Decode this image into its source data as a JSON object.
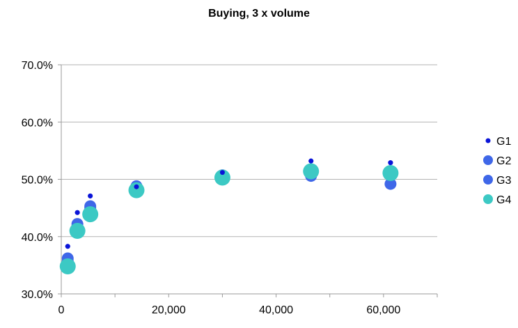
{
  "chart_data": {
    "type": "scatter",
    "title": "Buying, 3 x volume",
    "xlabel": "",
    "ylabel": "",
    "xlim": [
      0,
      70000
    ],
    "ylim": [
      0.3,
      0.7
    ],
    "x_ticks": [
      20000,
      40000,
      60000
    ],
    "x_tick_labels": [
      "20,000",
      "40,000",
      "60,000"
    ],
    "y_ticks": [
      0.3,
      0.4,
      0.5,
      0.6,
      0.7
    ],
    "y_tick_labels": [
      "30.0%",
      "40.0%",
      "50.0%",
      "60.0%",
      "70.0%"
    ],
    "grid": "horizontal",
    "legend_position": "right",
    "series": [
      {
        "name": "G1",
        "color": "#0a14d8",
        "marker": "small-circle",
        "x": [
          1200,
          3000,
          5400,
          14000,
          30000,
          46500,
          61300
        ],
        "y": [
          0.383,
          0.442,
          0.471,
          0.487,
          0.512,
          0.532,
          0.529
        ]
      },
      {
        "name": "G2",
        "color": "#3f67e8",
        "marker": "circle",
        "x": [
          1200,
          3000,
          5400,
          14000,
          30000,
          46500,
          61300
        ],
        "y": [
          0.362,
          0.422,
          0.453,
          0.488,
          0.502,
          0.506,
          0.492
        ]
      },
      {
        "name": "G3",
        "color": "#3f67e8",
        "marker": "circle",
        "x": [
          1200,
          3000,
          5400,
          14000,
          30000,
          46500,
          61300
        ],
        "y": [
          0.358,
          0.418,
          0.45,
          0.485,
          0.507,
          0.514,
          0.513
        ]
      },
      {
        "name": "G4",
        "color": "#3cc9c4",
        "marker": "large-circle",
        "x": [
          1200,
          3000,
          5400,
          14000,
          30000,
          46500,
          61300
        ],
        "y": [
          0.348,
          0.41,
          0.439,
          0.481,
          0.503,
          0.514,
          0.511
        ]
      }
    ]
  }
}
